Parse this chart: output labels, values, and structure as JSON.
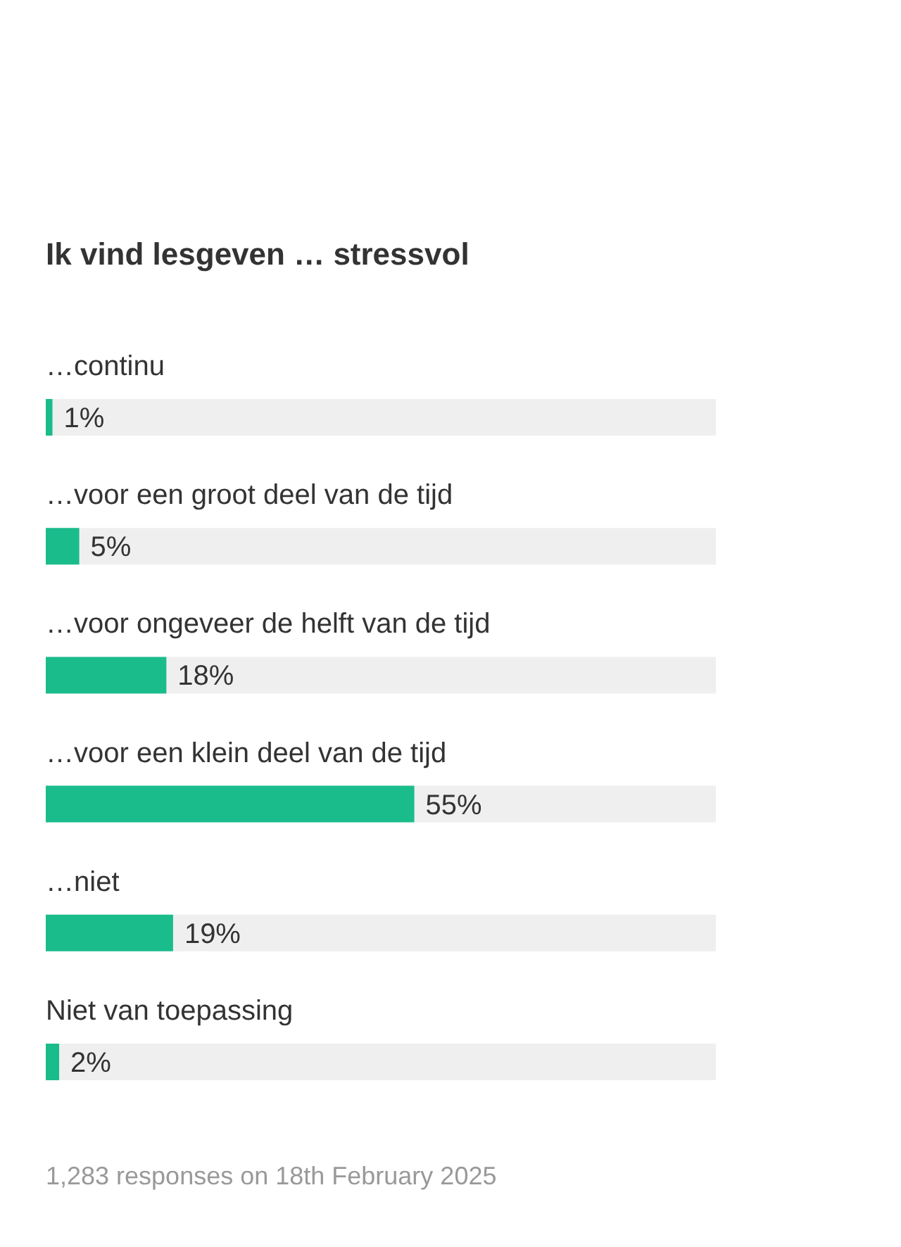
{
  "chart_data": {
    "type": "bar",
    "orientation": "horizontal",
    "title": "Ik vind lesgeven … stressvol",
    "categories": [
      "…continu",
      "…voor een groot deel van de tijd",
      "…voor ongeveer de helft van de tijd",
      "…voor een klein deel van de tijd",
      "…niet",
      "Niet van toepassing"
    ],
    "values": [
      1,
      5,
      18,
      55,
      19,
      2
    ],
    "value_labels": [
      "1%",
      "5%",
      "18%",
      "55%",
      "19%",
      "2%"
    ],
    "color": "#1abc8c",
    "xlim": [
      0,
      100
    ],
    "annotations": [
      "1,283 responses on 18th February 2025"
    ]
  }
}
